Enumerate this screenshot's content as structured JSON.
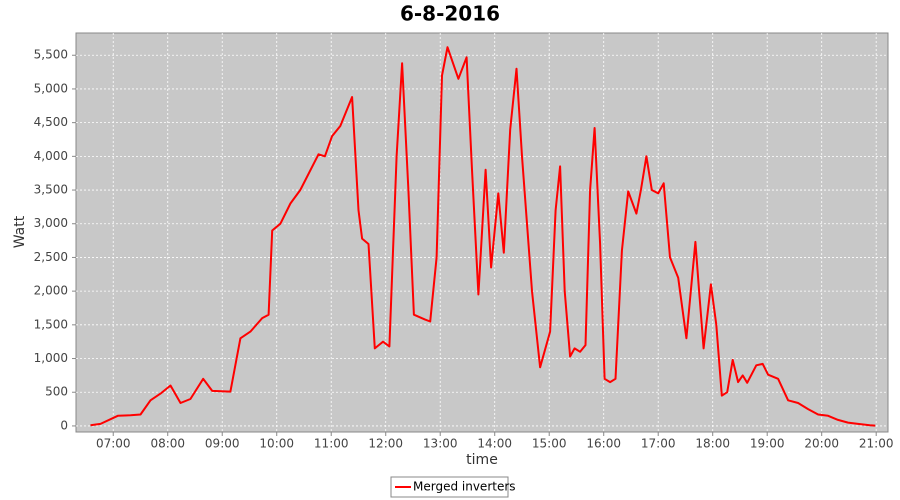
{
  "chart_data": {
    "type": "line",
    "title": "6-8-2016",
    "x_label": "time",
    "y_label": "Watt",
    "x": [
      "06:35",
      "06:46",
      "07:05",
      "07:19",
      "07:30",
      "07:41",
      "07:52",
      "08:03",
      "08:14",
      "08:25",
      "08:39",
      "08:49",
      "09:09",
      "09:20",
      "09:31",
      "09:44",
      "09:51",
      "09:55",
      "10:04",
      "10:15",
      "10:26",
      "10:46",
      "10:53",
      "11:01",
      "11:10",
      "11:23",
      "11:30",
      "11:34",
      "11:41",
      "11:48",
      "11:57",
      "12:04",
      "12:12",
      "12:18",
      "12:25",
      "12:31",
      "12:43",
      "12:49",
      "12:56",
      "13:02",
      "13:08",
      "13:20",
      "13:29",
      "13:35",
      "13:42",
      "13:50",
      "13:56",
      "14:04",
      "14:10",
      "14:17",
      "14:24",
      "14:30",
      "14:41",
      "14:50",
      "15:01",
      "15:07",
      "15:12",
      "15:17",
      "15:23",
      "15:28",
      "15:34",
      "15:40",
      "15:45",
      "15:50",
      "15:56",
      "16:01",
      "16:07",
      "16:13",
      "16:20",
      "16:27",
      "16:36",
      "16:41",
      "16:47",
      "16:53",
      "17:00",
      "17:06",
      "17:13",
      "17:22",
      "17:31",
      "17:41",
      "17:45",
      "17:50",
      "17:58",
      "18:04",
      "18:10",
      "18:16",
      "18:22",
      "18:28",
      "18:33",
      "18:38",
      "18:48",
      "18:55",
      "19:01",
      "19:12",
      "19:23",
      "19:34",
      "19:45",
      "19:56",
      "20:07",
      "20:18",
      "20:29",
      "20:40",
      "20:53",
      "20:59"
    ],
    "series": [
      {
        "name": "Merged inverters",
        "color": "#ff0000",
        "values": [
          10,
          30,
          150,
          160,
          170,
          380,
          480,
          600,
          340,
          400,
          700,
          520,
          510,
          1300,
          1400,
          1600,
          1650,
          2900,
          3000,
          3300,
          3500,
          4030,
          4000,
          4300,
          4450,
          4880,
          3200,
          2780,
          2700,
          1150,
          1250,
          1180,
          4000,
          5380,
          3500,
          1650,
          1580,
          1550,
          2500,
          5200,
          5620,
          5150,
          5470,
          3800,
          1950,
          3800,
          2350,
          3450,
          2570,
          4400,
          5300,
          4000,
          2000,
          870,
          1400,
          3200,
          3850,
          2000,
          1030,
          1150,
          1100,
          1200,
          3500,
          4420,
          2700,
          700,
          650,
          700,
          2600,
          3480,
          3150,
          3500,
          4000,
          3500,
          3450,
          3600,
          2500,
          2200,
          1300,
          2730,
          2000,
          1150,
          2100,
          1500,
          450,
          500,
          980,
          650,
          750,
          640,
          900,
          920,
          760,
          700,
          380,
          340,
          250,
          170,
          150,
          90,
          50,
          30,
          10,
          5
        ]
      }
    ],
    "xlim": [
      "06:19",
      "21:13"
    ],
    "xticks": [
      "07:00",
      "08:00",
      "09:00",
      "10:00",
      "11:00",
      "12:00",
      "13:00",
      "14:00",
      "15:00",
      "16:00",
      "17:00",
      "18:00",
      "19:00",
      "20:00",
      "21:00"
    ],
    "ylim": [
      -90,
      5830
    ],
    "yticks": [
      0,
      500,
      {
        "value": 1000,
        "label": "1,000"
      },
      {
        "value": 1500,
        "label": "1,500"
      },
      {
        "value": 2000,
        "label": "2,000"
      },
      {
        "value": 2500,
        "label": "2,500"
      },
      {
        "value": 3000,
        "label": "3,000"
      },
      {
        "value": 3500,
        "label": "3,500"
      },
      {
        "value": 4000,
        "label": "4,000"
      },
      {
        "value": 4500,
        "label": "4,500"
      },
      {
        "value": 5000,
        "label": "5,000"
      },
      {
        "value": 5500,
        "label": "5,500"
      }
    ],
    "grid": true,
    "legend": "bottom"
  }
}
